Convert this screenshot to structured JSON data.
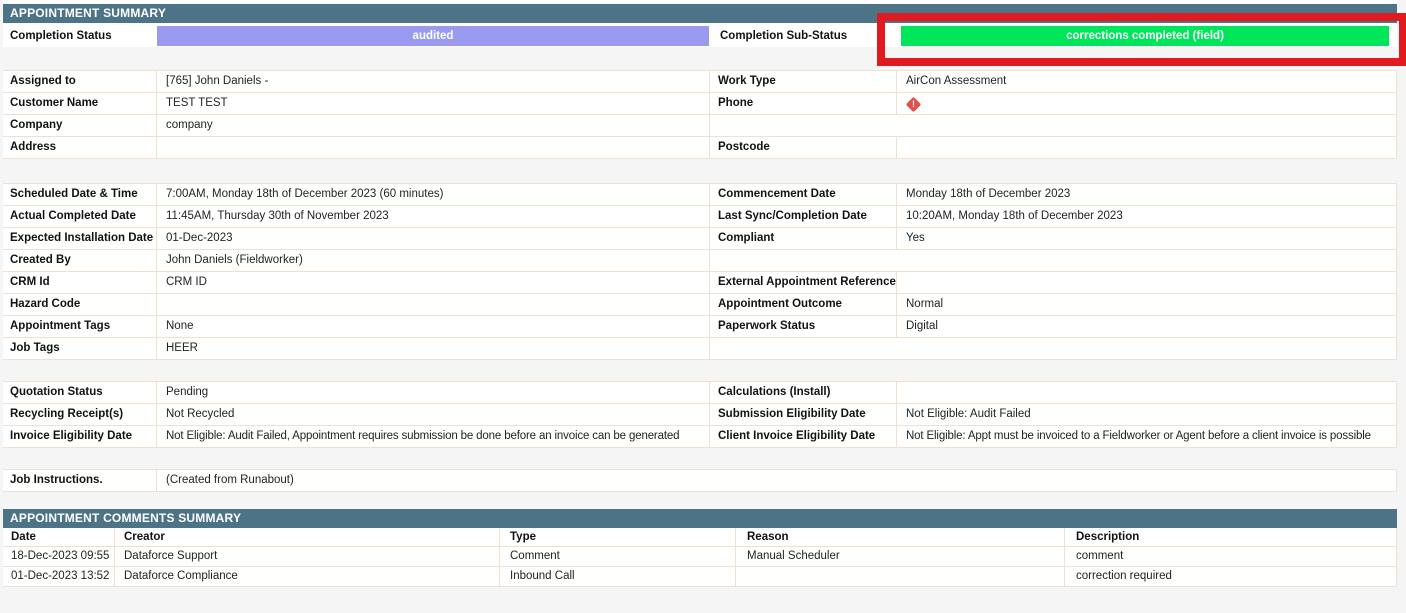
{
  "colors": {
    "header_bar": "#4d7486",
    "status_audited_bg": "#9a9af0",
    "substatus_bg": "#00e65a",
    "highlight_box_red": "#e11a1f",
    "phone_alert_red": "#e2504a",
    "row_border": "#efe0d1"
  },
  "icons": {
    "phone_alert": "diamond-exclamation",
    "phone_alert_glyph": "!"
  },
  "summary": {
    "title": "APPOINTMENT SUMMARY"
  },
  "completion": {
    "status_label": "Completion Status",
    "status_value": "audited",
    "substatus_label": "Completion Sub-Status",
    "substatus_value": "corrections completed (field)"
  },
  "blockA": {
    "rows": [
      {
        "l": "Assigned to",
        "lv": "[765] John Daniels -",
        "r": "Work Type",
        "rv": "AirCon Assessment"
      },
      {
        "l": "Customer Name",
        "lv": "TEST TEST",
        "r": "Phone",
        "rv": ""
      },
      {
        "l": "Company",
        "lv": "company"
      },
      {
        "l": "Address",
        "lv": "",
        "r": "Postcode",
        "rv": ""
      }
    ]
  },
  "blockB": {
    "rows": [
      {
        "l": "Scheduled Date & Time",
        "lv": "7:00AM, Monday 18th of December 2023 (60 minutes)",
        "r": "Commencement Date",
        "rv": "Monday 18th of December 2023"
      },
      {
        "l": "Actual Completed Date",
        "lv": "11:45AM, Thursday 30th of November 2023",
        "r": "Last Sync/Completion Date",
        "rv": "10:20AM, Monday 18th of December 2023"
      },
      {
        "l": "Expected Installation Date",
        "lv": "01-Dec-2023",
        "r": "Compliant",
        "rv": "Yes"
      },
      {
        "l": "Created By",
        "lv": "John Daniels (Fieldworker)"
      },
      {
        "l": "CRM Id",
        "lv": "CRM ID",
        "r": "External Appointment Reference",
        "rv": ""
      },
      {
        "l": "Hazard Code",
        "lv": "",
        "r": "Appointment Outcome",
        "rv": "Normal"
      },
      {
        "l": "Appointment Tags",
        "lv": "None",
        "r": "Paperwork Status",
        "rv": "Digital"
      },
      {
        "l": "Job Tags",
        "lv": "HEER"
      }
    ]
  },
  "blockC": {
    "rows": [
      {
        "l": "Quotation Status",
        "lv": "Pending",
        "r": "Calculations (Install)",
        "rv": ""
      },
      {
        "l": "Recycling Receipt(s)",
        "lv": "Not Recycled",
        "r": "Submission Eligibility Date",
        "rv": "Not Eligible: Audit Failed"
      },
      {
        "l": "Invoice Eligibility Date",
        "lv": "Not Eligible: Audit Failed, Appointment requires submission be done before an invoice can be generated",
        "r": "Client Invoice Eligibility Date",
        "rv": "Not Eligible: Appt must be invoiced to a Fieldworker or Agent before a client invoice is possible"
      }
    ]
  },
  "job_instructions": {
    "label": "Job Instructions.",
    "value": "(Created from Runabout)"
  },
  "comments": {
    "title": "APPOINTMENT COMMENTS SUMMARY",
    "columns": {
      "date": "Date",
      "creator": "Creator",
      "type": "Type",
      "reason": "Reason",
      "description": "Description"
    },
    "rows": [
      {
        "date": "18-Dec-2023 09:55",
        "creator": "Dataforce Support",
        "type": "Comment",
        "reason": "Manual Scheduler",
        "description": "comment"
      },
      {
        "date": "01-Dec-2023 13:52",
        "creator": "Dataforce Compliance",
        "type": "Inbound Call",
        "reason": "",
        "description": "correction required"
      }
    ]
  }
}
